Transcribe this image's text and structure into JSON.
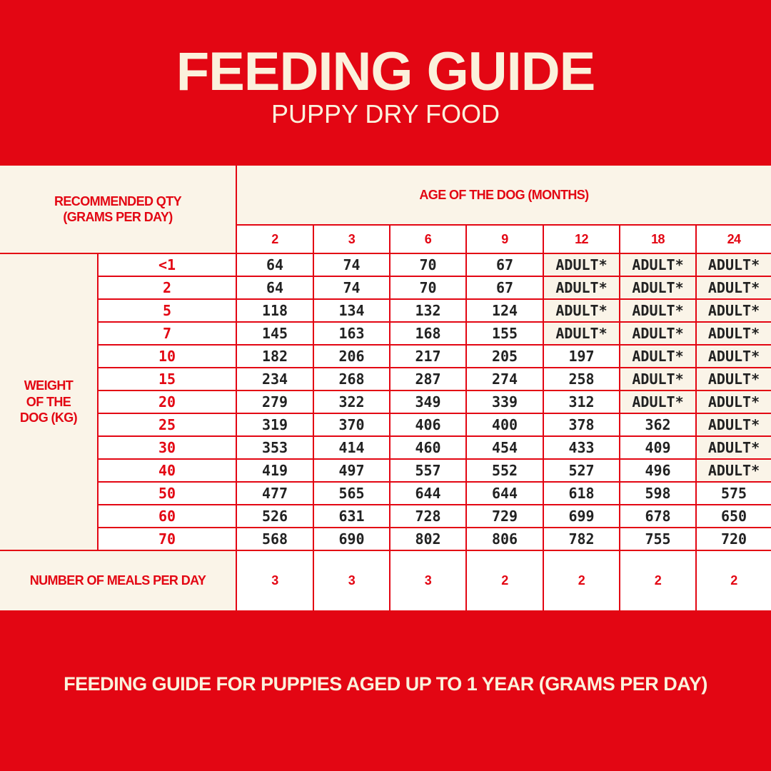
{
  "header": {
    "title": "FEEDING GUIDE",
    "subtitle": "PUPPY DRY FOOD"
  },
  "table": {
    "corner_label": [
      "RECOMMENDED QTY",
      "(GRAMS PER DAY)"
    ],
    "age_header": "AGE OF THE DOG (MONTHS)",
    "ages": [
      "2",
      "3",
      "6",
      "9",
      "12",
      "18",
      "24"
    ],
    "weight_label": [
      "WEIGHT",
      "OF THE",
      "DOG (KG)"
    ],
    "weights": [
      "<1",
      "2",
      "5",
      "7",
      "10",
      "15",
      "20",
      "25",
      "30",
      "40",
      "50",
      "60",
      "70"
    ],
    "rows": [
      [
        64,
        74,
        70,
        67,
        "ADULT*",
        "ADULT*",
        "ADULT*"
      ],
      [
        64,
        74,
        70,
        67,
        "ADULT*",
        "ADULT*",
        "ADULT*"
      ],
      [
        118,
        134,
        132,
        124,
        "ADULT*",
        "ADULT*",
        "ADULT*"
      ],
      [
        145,
        163,
        168,
        155,
        "ADULT*",
        "ADULT*",
        "ADULT*"
      ],
      [
        182,
        206,
        217,
        205,
        197,
        "ADULT*",
        "ADULT*"
      ],
      [
        234,
        268,
        287,
        274,
        258,
        "ADULT*",
        "ADULT*"
      ],
      [
        279,
        322,
        349,
        339,
        312,
        "ADULT*",
        "ADULT*"
      ],
      [
        319,
        370,
        406,
        400,
        378,
        362,
        "ADULT*"
      ],
      [
        353,
        414,
        460,
        454,
        433,
        409,
        "ADULT*"
      ],
      [
        419,
        497,
        557,
        552,
        527,
        496,
        "ADULT*"
      ],
      [
        477,
        565,
        644,
        644,
        618,
        598,
        575
      ],
      [
        526,
        631,
        728,
        729,
        699,
        678,
        650
      ],
      [
        568,
        690,
        802,
        806,
        782,
        755,
        720
      ]
    ],
    "meals_label": "NUMBER OF MEALS PER DAY",
    "meals": [
      3,
      3,
      3,
      2,
      2,
      2,
      2
    ]
  },
  "footer": {
    "text": "FEEDING GUIDE FOR PUPPIES AGED UP TO 1 YEAR (GRAMS PER DAY)"
  }
}
